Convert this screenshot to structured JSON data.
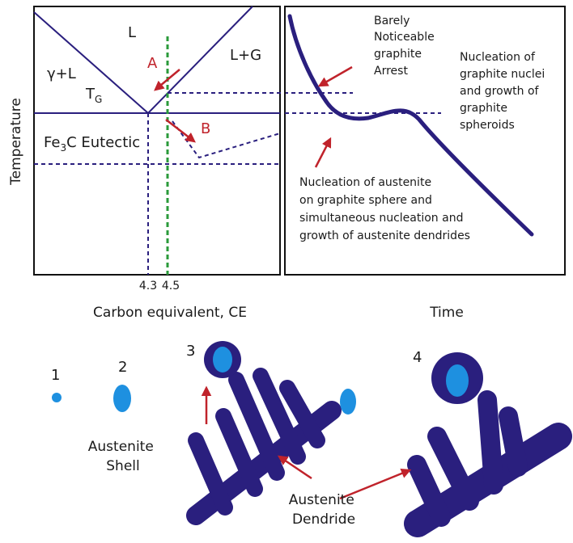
{
  "phase_diagram": {
    "liquid": "L",
    "liquid_graphite": "L+G",
    "gamma_liquid": "γ+L",
    "tg": {
      "main": "T",
      "sub": "G"
    },
    "point_a": "A",
    "point_b": "B",
    "eutectic": [
      "Fe",
      "3",
      "C Eutectic"
    ],
    "y_label": "Temperature",
    "x_marks": [
      "4.3",
      "4.5"
    ],
    "x_label": "Carbon equivalent, CE"
  },
  "cooling_curve": {
    "arrest_note": [
      "Barely",
      "Noticeable",
      "graphite",
      "Arrest"
    ],
    "graphite_note": [
      "Nucleation of",
      "graphite nuclei",
      "and growth of",
      "graphite",
      "spheroids"
    ],
    "austenite_note": [
      "Nucleation of austenite",
      "on graphite sphere and",
      "simultaneous nucleation and",
      "growth of austenite dendrides"
    ],
    "x_label": "Time"
  },
  "stages": [
    "1",
    "2",
    "3",
    "4"
  ],
  "labels": {
    "shell": [
      "Austenite",
      "Shell"
    ],
    "dendride": [
      "Austenite",
      "Dendride"
    ]
  }
}
